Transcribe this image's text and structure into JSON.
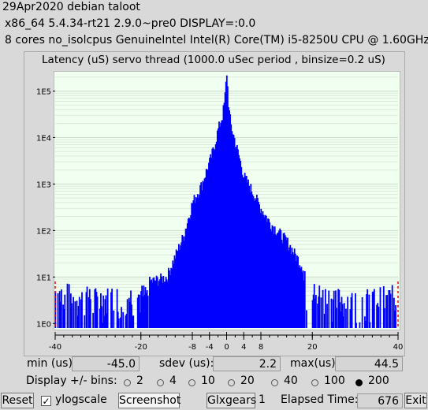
{
  "header": {
    "line1": "29Apr2020 debian taloot",
    "line2": "x86_64  5.4.34-rt21  2.9.0~pre0  DISPLAY=:0.0",
    "line3": "8 cores  no_isolcpus   GenuineIntel  Intel(R) Core(TM) i5-8250U CPU @ 1.60GHz"
  },
  "chart_data": {
    "type": "bar",
    "title": "Latency (uS) servo thread (1000.0 uSec period , binsize=0.2 uS)",
    "xlim": [
      -40,
      40
    ],
    "ylim": [
      0.8,
      250000
    ],
    "yscale": "log",
    "x_ticks": [
      -40,
      -20,
      -8,
      -4,
      0,
      4,
      8,
      20,
      40
    ],
    "y_tick_labels": [
      "1E0",
      "1E1",
      "1E2",
      "1E3",
      "1E4",
      "1E5"
    ],
    "bar_color": "#0000ff",
    "marker_color": "#ff0000",
    "grid": true,
    "envelope_x": [
      -40,
      -30,
      -20,
      -14,
      -10,
      -8,
      -6,
      -4,
      -3,
      -2,
      -1,
      -0.5,
      0,
      0.5,
      1,
      2,
      3,
      4,
      6,
      8,
      10,
      14,
      18,
      20,
      26,
      30,
      34,
      40
    ],
    "envelope_y": [
      8,
      6,
      7,
      10,
      80,
      400,
      900,
      3000,
      6000,
      15000,
      30000,
      60000,
      250000,
      40000,
      18000,
      8000,
      3500,
      1500,
      700,
      300,
      150,
      60,
      15,
      8,
      6,
      5,
      6,
      7
    ],
    "endpoint_markers": [
      -40,
      40
    ]
  },
  "stats": {
    "min_label": "min (us)",
    "min_value": "-45.0",
    "sdev_label": "sdev (us):",
    "sdev_value": "2.2",
    "max_label": "max(us)",
    "max_value": "44.5"
  },
  "bins": {
    "label": "Display +/- bins:",
    "options": [
      "2",
      "4",
      "10",
      "20",
      "40",
      "100",
      "200"
    ],
    "selected": "200"
  },
  "toolbar": {
    "reset": "Reset",
    "ylogscale": "ylogscale",
    "ylogscale_checked": true,
    "screenshot": "Screenshot",
    "glxgears": "Glxgears",
    "glxgears_count": "1",
    "elapsed_label": "Elapsed Time:",
    "elapsed_value": "676",
    "exit": "Exit"
  }
}
